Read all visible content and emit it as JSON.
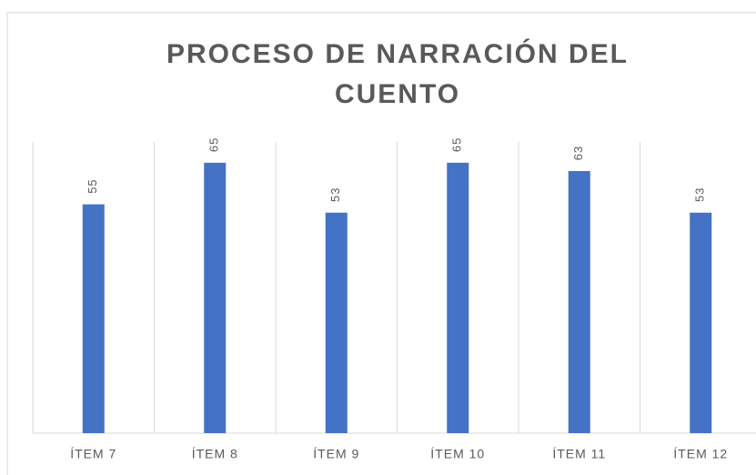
{
  "chart_data": {
    "type": "bar",
    "title": "PROCESO DE NARRACIÓN DEL CUENTO",
    "categories": [
      "ÍTEM 7",
      "ÍTEM 8",
      "ÍTEM 9",
      "ÍTEM 10",
      "ÍTEM 11",
      "ÍTEM 12"
    ],
    "values": [
      55,
      65,
      53,
      65,
      63,
      53
    ],
    "color": "#4472c4",
    "ylim": [
      0,
      70
    ],
    "grid": true
  }
}
